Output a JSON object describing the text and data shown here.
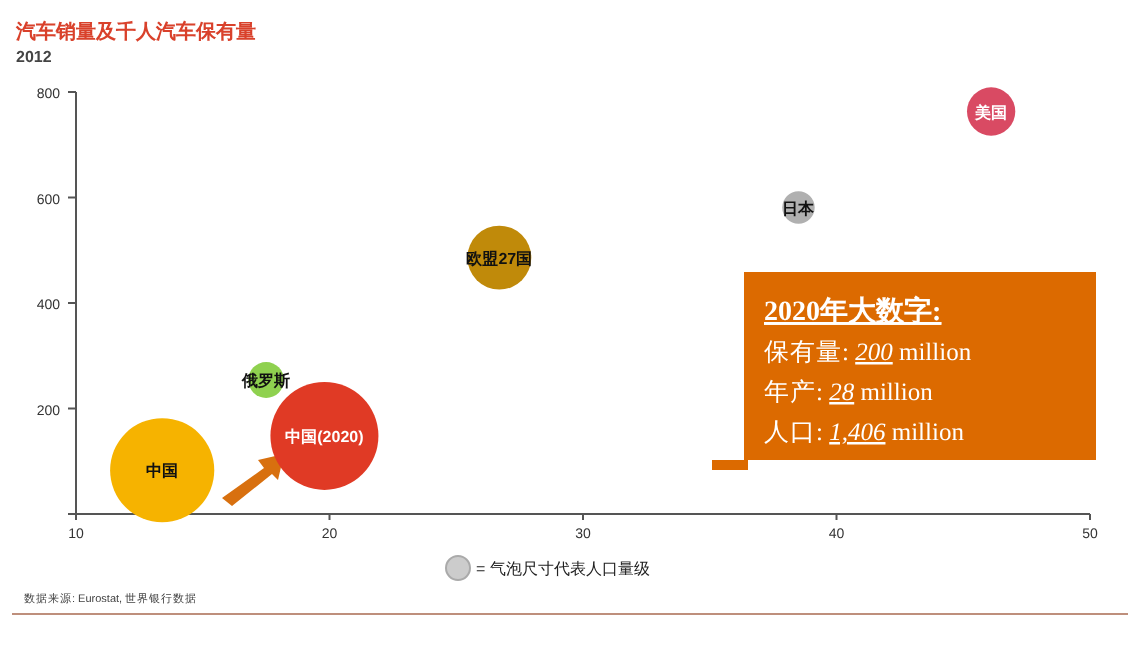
{
  "chart_data": {
    "type": "bubble",
    "title": "汽车销量及千人汽车保有量",
    "subtitle": "2012",
    "xlim": [
      10,
      50
    ],
    "xticks": [
      10,
      20,
      30,
      40,
      50
    ],
    "ylim": [
      0,
      800
    ],
    "yticks": [
      {
        "value": 0,
        "label": null
      },
      200,
      400,
      600,
      800
    ],
    "series": [
      {
        "name": "中国",
        "color": "#f6b300",
        "x": [
          13.4
        ],
        "values": [
          83
        ],
        "sizes": [
          0.93
        ]
      },
      {
        "name": "中国(2020)",
        "color": "#e03a25",
        "x": [
          19.8
        ],
        "values": [
          148
        ],
        "sizes": [
          1
        ]
      },
      {
        "name": "俄罗斯",
        "color": "#8fd14f",
        "x": [
          17.5
        ],
        "values": [
          254
        ],
        "sizes": [
          0.11
        ]
      },
      {
        "name": "欧盟27国",
        "color": "#c08a0a",
        "x": [
          26.7
        ],
        "values": [
          486
        ],
        "sizes": [
          0.35
        ]
      },
      {
        "name": "日本",
        "color": "#b0b0b0",
        "x": [
          38.5
        ],
        "values": [
          581
        ],
        "sizes": [
          0.09
        ]
      },
      {
        "name": "美国",
        "color": "#d94a63",
        "x": [
          46.1
        ],
        "values": [
          763
        ],
        "sizes": [
          0.2
        ]
      }
    ],
    "annotations": [
      "**2020年大数字:**",
      "保有量: *200* million",
      "年产: *28* million",
      "人口: *1,406* million",
      "= 气泡尺寸代表人口量级",
      "数据来源: Eurostat, 世界银行数据"
    ]
  }
}
